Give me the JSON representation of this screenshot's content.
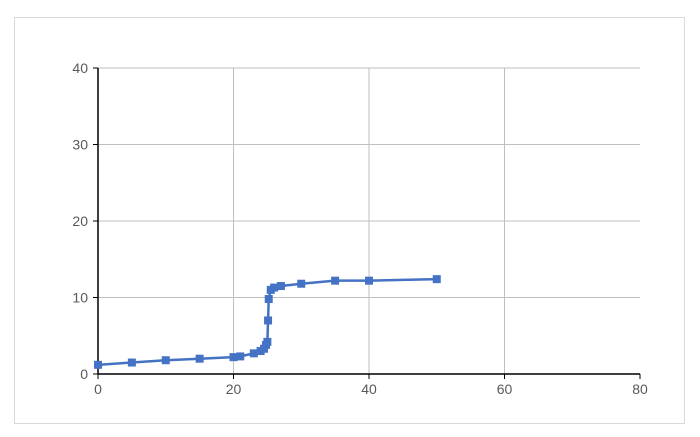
{
  "chart_data": {
    "type": "line",
    "title": "",
    "xlabel": "",
    "ylabel": "",
    "xlim": [
      0,
      80
    ],
    "ylim": [
      0,
      40
    ],
    "x_ticks": [
      "0",
      "20",
      "40",
      "60",
      "80"
    ],
    "y_ticks": [
      "0",
      "10",
      "20",
      "30",
      "40"
    ],
    "grid": true,
    "legend": "none",
    "colors": {
      "series": "#4472c4",
      "grid": "#bfbfbf",
      "axis": "#000000"
    },
    "series": [
      {
        "marker": "square",
        "x": [
          0,
          5,
          10,
          15,
          20,
          21,
          23,
          24,
          24.5,
          24.8,
          25,
          25.1,
          25.2,
          25.5,
          26,
          27,
          30,
          35,
          40,
          50
        ],
        "y": [
          1.2,
          1.5,
          1.8,
          2.0,
          2.2,
          2.3,
          2.7,
          3.0,
          3.3,
          3.8,
          4.2,
          7.0,
          9.8,
          11.0,
          11.3,
          11.5,
          11.8,
          12.2,
          12.2,
          12.4
        ]
      }
    ]
  }
}
